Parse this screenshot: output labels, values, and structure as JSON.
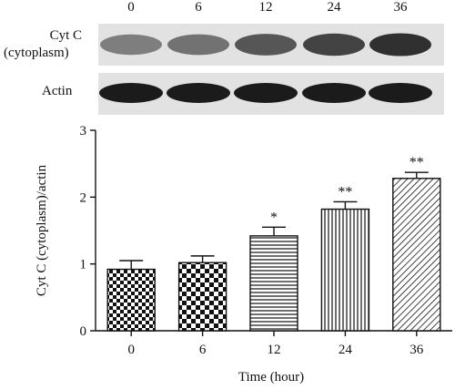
{
  "blot": {
    "lanes": [
      "0",
      "6",
      "12",
      "24",
      "36"
    ],
    "row1_label_line1": "Cyt C",
    "row1_label_line2": "(cytoplasm)",
    "row2_label": "Actin",
    "cytc_band_intensity": [
      0.55,
      0.6,
      0.72,
      0.8,
      0.88
    ],
    "actin_band_intensity": [
      0.95,
      0.95,
      0.95,
      0.95,
      0.95
    ]
  },
  "chart_data": {
    "type": "bar",
    "categories": [
      "0",
      "6",
      "12",
      "24",
      "36"
    ],
    "values": [
      0.92,
      1.02,
      1.42,
      1.82,
      2.28
    ],
    "errors": [
      0.13,
      0.1,
      0.13,
      0.11,
      0.09
    ],
    "significance": [
      "",
      "",
      "*",
      "**",
      "**"
    ],
    "patterns": [
      "checker-small",
      "checker-large",
      "horizontal-lines",
      "vertical-lines",
      "diagonal-lines"
    ],
    "xlabel": "Time (hour)",
    "ylabel": "Cyt C (cytoplasm)/actin",
    "ylim": [
      0,
      3
    ],
    "yticks": [
      "0",
      "1",
      "2",
      "3"
    ],
    "grid": false
  }
}
